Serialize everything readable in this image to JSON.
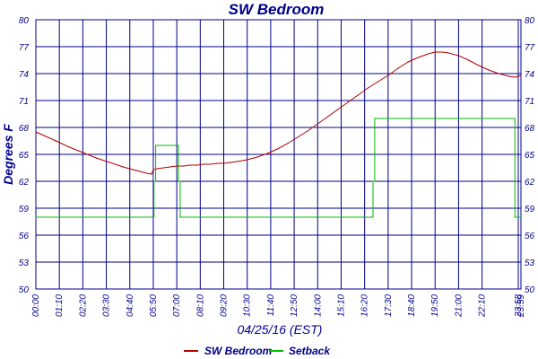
{
  "chart_data": {
    "type": "line",
    "title": "SW Bedroom",
    "xlabel": "04/25/16 (EST)",
    "ylabel": "Degrees F",
    "ylim": [
      50,
      80
    ],
    "yticks": [
      "50",
      "53",
      "56",
      "59",
      "62",
      "65",
      "68",
      "71",
      "74",
      "77",
      "80"
    ],
    "xlim": [
      0,
      1446
    ],
    "xticks": [
      {
        "t": 0,
        "label": "00:00"
      },
      {
        "t": 70,
        "label": "01:10"
      },
      {
        "t": 140,
        "label": "02:20"
      },
      {
        "t": 210,
        "label": "03:30"
      },
      {
        "t": 280,
        "label": "04:40"
      },
      {
        "t": 350,
        "label": "05:50"
      },
      {
        "t": 420,
        "label": "07:00"
      },
      {
        "t": 490,
        "label": "08:10"
      },
      {
        "t": 560,
        "label": "09:20"
      },
      {
        "t": 630,
        "label": "10:30"
      },
      {
        "t": 700,
        "label": "11:40"
      },
      {
        "t": 770,
        "label": "12:50"
      },
      {
        "t": 840,
        "label": "14:00"
      },
      {
        "t": 910,
        "label": "15:10"
      },
      {
        "t": 980,
        "label": "16:20"
      },
      {
        "t": 1050,
        "label": "17:30"
      },
      {
        "t": 1120,
        "label": "18:40"
      },
      {
        "t": 1190,
        "label": "19:50"
      },
      {
        "t": 1260,
        "label": "21:00"
      },
      {
        "t": 1330,
        "label": "22:10"
      },
      {
        "t": 1438,
        "label": "23:58"
      },
      {
        "t": 1446,
        "label": "23:59"
      }
    ],
    "grid": true,
    "legend": "bottom",
    "series": [
      {
        "name": "SW Bedroom",
        "color": "#b00000",
        "x": [
          0,
          30,
          60,
          100,
          140,
          180,
          220,
          260,
          300,
          330,
          345,
          350,
          360,
          380,
          400,
          420,
          440,
          460,
          480,
          500,
          520,
          540,
          560,
          580,
          600,
          630,
          660,
          690,
          720,
          750,
          780,
          810,
          840,
          870,
          900,
          930,
          960,
          990,
          1020,
          1050,
          1080,
          1110,
          1140,
          1170,
          1190,
          1210,
          1230,
          1260,
          1290,
          1320,
          1350,
          1380,
          1410,
          1430,
          1446
        ],
        "y": [
          67.5,
          67.0,
          66.5,
          65.8,
          65.2,
          64.6,
          64.1,
          63.6,
          63.2,
          62.9,
          62.8,
          63.3,
          63.4,
          63.5,
          63.6,
          63.7,
          63.7,
          63.8,
          63.8,
          63.9,
          63.9,
          64.0,
          64.0,
          64.1,
          64.2,
          64.4,
          64.7,
          65.1,
          65.6,
          66.2,
          66.9,
          67.6,
          68.4,
          69.2,
          70.0,
          70.8,
          71.6,
          72.4,
          73.1,
          73.8,
          74.6,
          75.3,
          75.8,
          76.2,
          76.4,
          76.4,
          76.3,
          76.0,
          75.5,
          74.9,
          74.4,
          74.0,
          73.7,
          73.6,
          73.8
        ]
      },
      {
        "name": "Setback",
        "color": "#00bb00",
        "x": [
          0,
          352,
          352,
          357,
          357,
          425,
          425,
          430,
          430,
          1005,
          1005,
          1010,
          1010,
          1428,
          1428,
          1446
        ],
        "y": [
          58,
          58,
          62,
          62,
          66,
          66,
          62,
          62,
          58,
          58,
          62,
          62,
          69,
          69,
          58,
          58
        ]
      }
    ]
  }
}
